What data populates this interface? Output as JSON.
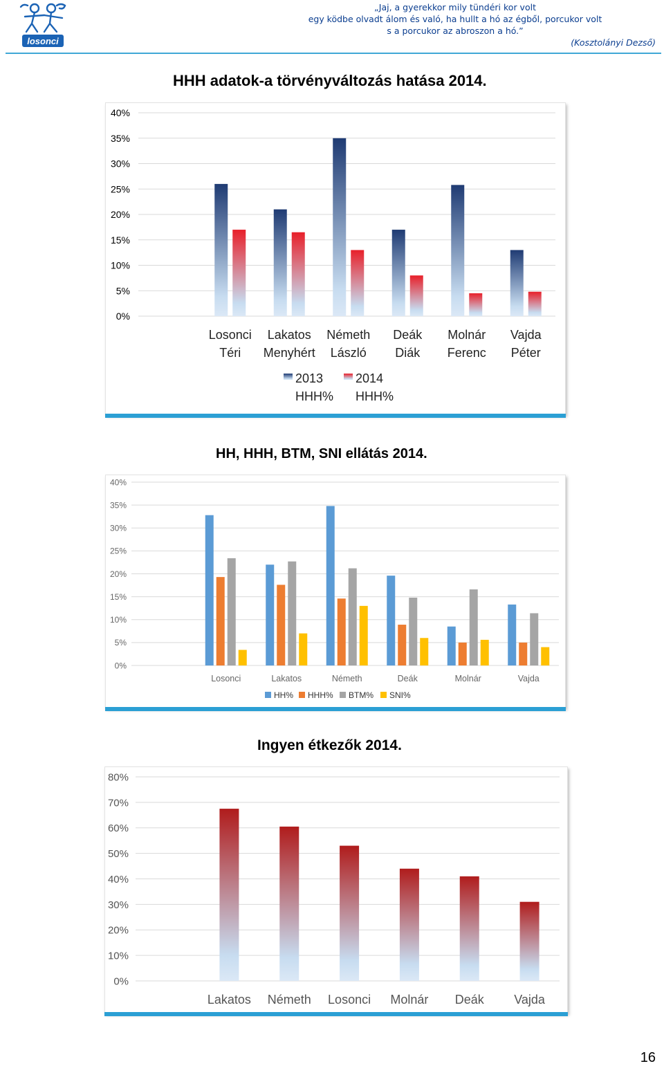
{
  "header": {
    "quote_lines": [
      "„Jaj, a gyerekkor mily tündéri kor volt",
      "egy ködbe olvadt álom és való, ha hullt a hó az égből, porcukor volt",
      "s a porcukor az abroszon a hó.”"
    ],
    "quote_author": "(Kosztolányi Dezső)",
    "logo_text": "losonci",
    "accent_color": "#3fa7d6",
    "quote_color": "#0a3d8f"
  },
  "page_number": "16",
  "chart_data": [
    {
      "type": "bar",
      "title": "HHH adatok-a törvényváltozás hatása 2014.",
      "categories": [
        [
          "Losonci",
          "Téri"
        ],
        [
          "Lakatos",
          "Menyhért"
        ],
        [
          "Németh",
          "László"
        ],
        [
          "Deák",
          "Diák"
        ],
        [
          "Molnár",
          "Ferenc"
        ],
        [
          "Vajda",
          "Péter"
        ]
      ],
      "series": [
        {
          "name": "2013 HHH%",
          "legend_lines": [
            "2013",
            "HHH%"
          ],
          "color": "#1f3b73",
          "values": [
            26,
            21,
            35,
            17,
            25.8,
            13
          ]
        },
        {
          "name": "2014 HHH%",
          "legend_lines": [
            "2014",
            "HHH%"
          ],
          "color": "#e8202a",
          "values": [
            17,
            16.5,
            13,
            8,
            4.5,
            4.8
          ]
        }
      ],
      "ylim": [
        0,
        40
      ],
      "yticks": [
        "0%",
        "5%",
        "10%",
        "15%",
        "20%",
        "25%",
        "30%",
        "35%",
        "40%"
      ],
      "grid": true,
      "legend": "bottom"
    },
    {
      "type": "bar",
      "title": "HH, HHH, BTM, SNI ellátás 2014.",
      "categories": [
        "Losonci",
        "Lakatos",
        "Németh",
        "Deák",
        "Molnár",
        "Vajda"
      ],
      "series": [
        {
          "name": "HH%",
          "color": "#5b9bd5",
          "values": [
            32.8,
            22,
            34.8,
            19.6,
            8.5,
            13.3
          ]
        },
        {
          "name": "HHH%",
          "color": "#ed7d31",
          "values": [
            19.3,
            17.6,
            14.6,
            8.9,
            5,
            5
          ]
        },
        {
          "name": "BTM%",
          "color": "#a5a5a5",
          "values": [
            23.4,
            22.7,
            21.2,
            14.8,
            16.6,
            11.4
          ]
        },
        {
          "name": "SNI%",
          "color": "#ffc000",
          "values": [
            3.4,
            7,
            13,
            6,
            5.6,
            4
          ]
        }
      ],
      "ylim": [
        0,
        40
      ],
      "yticks": [
        "0%",
        "5%",
        "10%",
        "15%",
        "20%",
        "25%",
        "30%",
        "35%",
        "40%"
      ],
      "grid": true,
      "legend": "bottom"
    },
    {
      "type": "bar",
      "title": "Ingyen étkezők 2014.",
      "categories": [
        "Lakatos",
        "Németh",
        "Losonci",
        "Molnár",
        "Deák",
        "Vajda"
      ],
      "series": [
        {
          "name": "",
          "color": "#b01c1c",
          "values": [
            67.5,
            60.5,
            53,
            44,
            41,
            31
          ]
        }
      ],
      "ylim": [
        0,
        80
      ],
      "yticks": [
        "0%",
        "10%",
        "20%",
        "30%",
        "40%",
        "50%",
        "60%",
        "70%",
        "80%"
      ],
      "grid": true,
      "legend": "none"
    }
  ]
}
